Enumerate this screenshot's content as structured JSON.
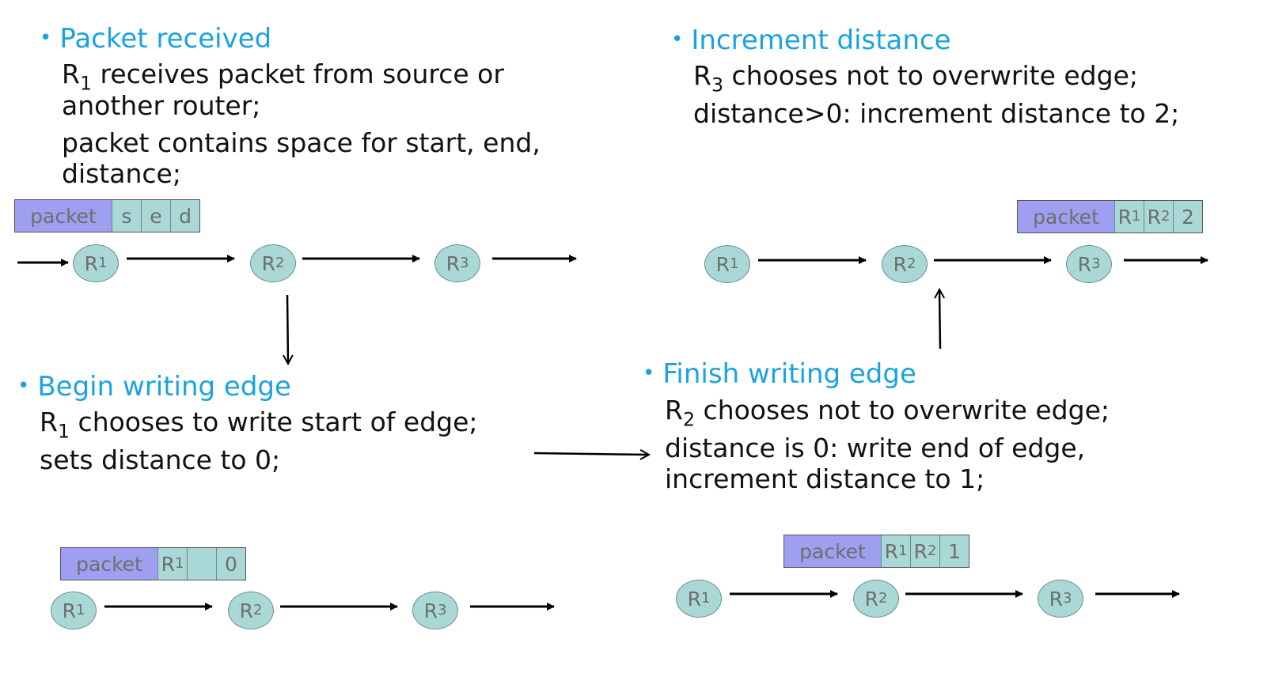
{
  "panels": {
    "received": {
      "heading": "Packet received",
      "line1_a": "R",
      "line1_sub": "1",
      "line1_b": " receives packet from source or",
      "line2": "another router;",
      "line3": "packet contains space for start, end,",
      "line4": "distance;",
      "packet": {
        "label": "packet",
        "fields": [
          "s",
          "e",
          "d"
        ]
      }
    },
    "increment": {
      "heading": "Increment distance",
      "line1_a": "R",
      "line1_sub": "3",
      "line1_b": " chooses not to overwrite edge;",
      "line2": "distance>0: increment distance to 2;",
      "packet": {
        "label": "packet",
        "f1": "R",
        "f1_sub": "1",
        "f2": "R",
        "f2_sub": "2",
        "f3": "2"
      }
    },
    "begin": {
      "heading": "Begin writing edge",
      "line1_a": "R",
      "line1_sub": "1",
      "line1_b": " chooses to write start of edge;",
      "line2": "sets distance to 0;",
      "packet": {
        "label": "packet",
        "f1": "R",
        "f1_sub": "1",
        "f2": "",
        "f3": "0"
      }
    },
    "finish": {
      "heading": "Finish writing edge",
      "line1_a": "R",
      "line1_sub": "2",
      "line1_b": " chooses not to overwrite edge;",
      "line2": "distance is 0: write end of edge,",
      "line3": "increment distance to 1;",
      "packet": {
        "label": "packet",
        "f1": "R",
        "f1_sub": "1",
        "f2": "R",
        "f2_sub": "2",
        "f3": "1"
      }
    }
  },
  "routers": {
    "r": "R",
    "s1": "1",
    "s2": "2",
    "s3": "3"
  },
  "bullet": "•",
  "colors": {
    "heading": "#1aa3e0",
    "packet": "#9f9ff2",
    "field": "#a9d8d6"
  }
}
